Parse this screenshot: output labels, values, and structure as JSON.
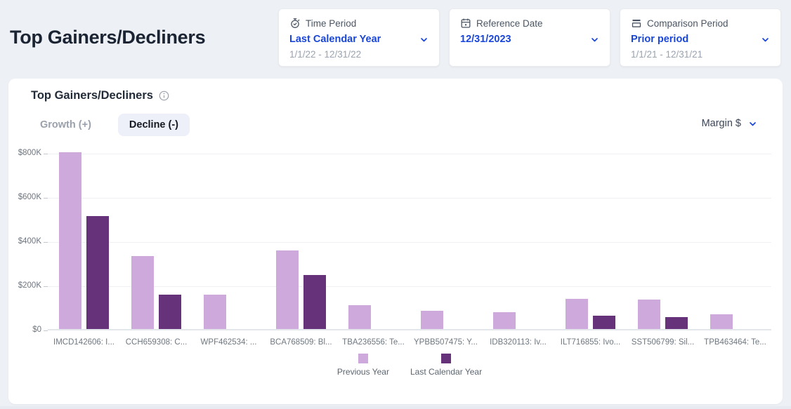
{
  "page": {
    "title": "Top Gainers/Decliners"
  },
  "colors": {
    "link_blue": "#1a46d8",
    "bar_light": "#cea9db",
    "bar_dark": "#66337a",
    "tab_pill": "#eef0f9"
  },
  "filters": [
    {
      "icon": "clock-icon",
      "label": "Time Period",
      "value": "Last Calendar Year",
      "range": "1/1/22 - 12/31/22"
    },
    {
      "icon": "calendar-icon",
      "label": "Reference Date",
      "value": "12/31/2023",
      "range": ""
    },
    {
      "icon": "comparison-icon",
      "label": "Comparison Period",
      "value": "Prior period",
      "range": "1/1/21 - 12/31/21"
    }
  ],
  "panel": {
    "title": "Top Gainers/Decliners",
    "tabs": [
      {
        "label": "Growth (+)",
        "active": false
      },
      {
        "label": "Decline (-)",
        "active": true
      }
    ],
    "metric_dropdown": "Margin $"
  },
  "chart_data": {
    "type": "bar",
    "title": "Top Gainers/Decliners",
    "categories": [
      "IMCD142606: I...",
      "CCH659308: C...",
      "WPF462534: ...",
      "BCA768509: Bl...",
      "TBA236556: Te...",
      "YPBB507475: Y...",
      "IDB320113: Iv...",
      "ILT716855: Ivo...",
      "SST506799: Sil...",
      "TPB463464: Te..."
    ],
    "series": [
      {
        "name": "Previous Year",
        "color": "#cea9db",
        "values": [
          800000,
          330000,
          155000,
          355000,
          108000,
          82000,
          76000,
          136000,
          133000,
          67000
        ]
      },
      {
        "name": "Last Calendar Year",
        "color": "#66337a",
        "values": [
          510000,
          155000,
          0,
          245000,
          0,
          0,
          0,
          60000,
          55000,
          0
        ]
      }
    ],
    "xlabel": "",
    "ylabel": "Margin $",
    "ylim": [
      0,
      800000
    ],
    "yticks": [
      "$800K",
      "$600K",
      "$400K",
      "$200K",
      "$0"
    ],
    "grid": true,
    "legend_position": "bottom"
  }
}
